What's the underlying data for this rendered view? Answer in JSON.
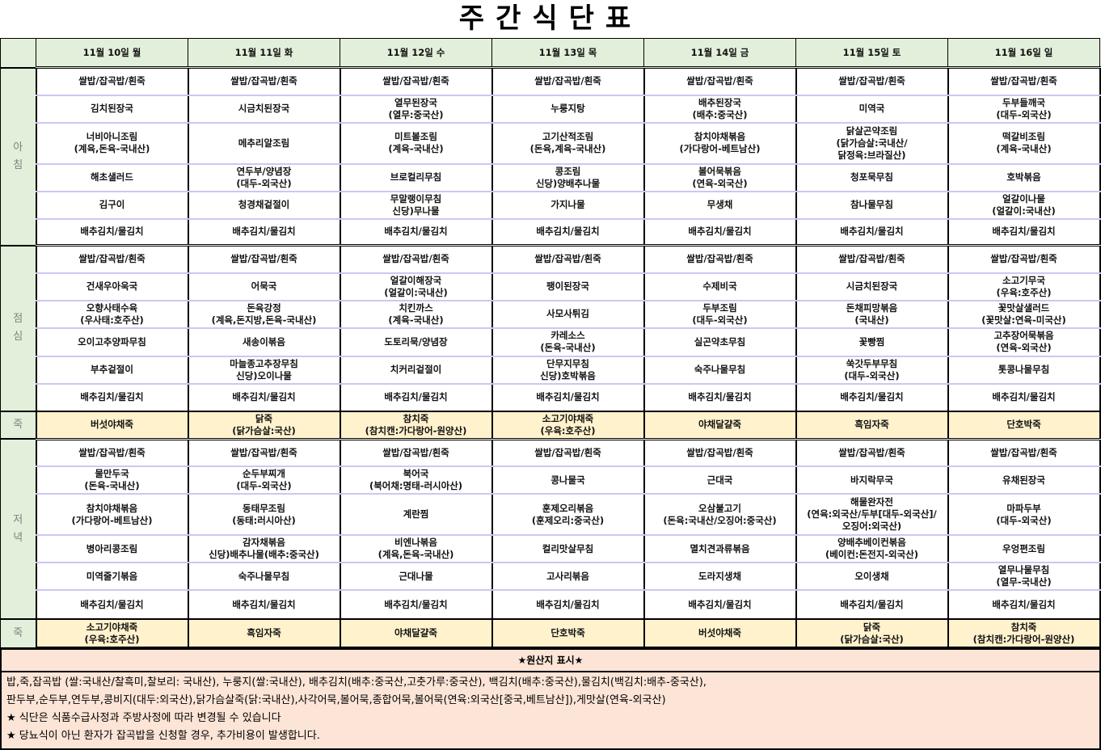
{
  "title": "주간식단표",
  "days": [
    "11월 10일 월",
    "11월 11일 화",
    "11월 12일 수",
    "11월 13일 목",
    "11월 14일 금",
    "11월 15일 토",
    "11월 16일 일"
  ],
  "meals": [
    {
      "label": "아\n침",
      "type": "meal",
      "rows": [
        [
          "쌀밥/잡곡밥/흰죽",
          "쌀밥/잡곡밥/흰죽",
          "쌀밥/잡곡밥/흰죽",
          "쌀밥/잡곡밥/흰죽",
          "쌀밥/잡곡밥/흰죽",
          "쌀밥/잡곡밥/흰죽",
          "쌀밥/잡곡밥/흰죽"
        ],
        [
          "김치된장국",
          "시금치된장국",
          "열무된장국\n(열무:중국산)",
          "누룽지탕",
          "배추된장국\n(배추:중국산)",
          "미역국",
          "두부들깨국\n(대두-외국산)"
        ],
        [
          "너비아니조림\n(계육,돈육-국내산)",
          "메추리알조림",
          "미트볼조림\n(계육-국내산)",
          "고기산적조림\n(돈육,계육-국내산)",
          "참치야채볶음\n(가다랑어-베트남산)",
          "닭살곤약조림\n(닭가슴살:국내산/\n닭정육:브라질산)",
          "떡갈비조림\n(계육-국내산)"
        ],
        [
          "해초샐러드",
          "연두부/양념장\n(대두-외국산)",
          "브로컬리무침",
          "콩조림\n신당)양배추나물",
          "볼어묵볶음\n(연육-외국산)",
          "청포묵무침",
          "호박볶음"
        ],
        [
          "김구이",
          "청경채겉절이",
          "무말랭이무침\n신당)무나물",
          "가지나물",
          "무생채",
          "참나물무침",
          "얼갈이나물\n(얼갈이:국내산)"
        ],
        [
          "배추김치/물김치",
          "배추김치/물김치",
          "배추김치/물김치",
          "배추김치/물김치",
          "배추김치/물김치",
          "배추김치/물김치",
          "배추김치/물김치"
        ]
      ]
    },
    {
      "label": "점\n심",
      "type": "meal",
      "rows": [
        [
          "쌀밥/잡곡밥/흰죽",
          "쌀밥/잡곡밥/흰죽",
          "쌀밥/잡곡밥/흰죽",
          "쌀밥/잡곡밥/흰죽",
          "쌀밥/잡곡밥/흰죽",
          "쌀밥/잡곡밥/흰죽",
          "쌀밥/잡곡밥/흰죽"
        ],
        [
          "건새우아욱국",
          "어묵국",
          "얼갈이해장국\n(얼갈이:국내산)",
          "팽이된장국",
          "수제비국",
          "시금치된장국",
          "소고기무국\n(우육:호주산)"
        ],
        [
          "오향사태수육\n(우사태:호주산)",
          "돈육강정\n(계육,돈지방,돈육-국내산)",
          "치킨까스\n(계육-국내산)",
          "사모사튀김",
          "두부조림\n(대두-외국산)",
          "돈채피망볶음\n(국내산)",
          "꽃맛살샐러드\n(꽃맛살:연육-미국산)"
        ],
        [
          "오이고추양파무침",
          "새송이볶음",
          "도토리묵/양념장",
          "카레소스\n(돈육-국내산)",
          "실곤약초무침",
          "꽃빵찜",
          "고추장어묵볶음\n(연육-외국산)"
        ],
        [
          "부추겉절이",
          "마늘종고추장무침\n신당)오이나물",
          "치커리겉절이",
          "단무지무침\n신당)호박볶음",
          "숙주나물무침",
          "쑥갓두부무침\n(대두-외국산)",
          "톳콩나물무침"
        ],
        [
          "배추김치/물김치",
          "배추김치/물김치",
          "배추김치/물김치",
          "배추김치/물김치",
          "배추김치/물김치",
          "배추김치/물김치",
          "배추김치/물김치"
        ]
      ]
    },
    {
      "label": "죽",
      "type": "juk",
      "rows": [
        [
          "버섯야채죽",
          "닭죽\n(닭가슴살:국산)",
          "참치죽\n(참치캔:가다랑어-원양산)",
          "소고기야채죽\n(우육:호주산)",
          "야채달걀죽",
          "흑임자죽",
          "단호박죽"
        ]
      ]
    },
    {
      "label": "저\n녁",
      "type": "meal",
      "rows": [
        [
          "쌀밥/잡곡밥/흰죽",
          "쌀밥/잡곡밥/흰죽",
          "쌀밥/잡곡밥/흰죽",
          "쌀밥/잡곡밥/흰죽",
          "쌀밥/잡곡밥/흰죽",
          "쌀밥/잡곡밥/흰죽",
          "쌀밥/잡곡밥/흰죽"
        ],
        [
          "물만두국\n(돈육-국내산)",
          "순두부찌개\n(대두-외국산)",
          "북어국\n(북어채:명태-러시아산)",
          "콩나물국",
          "근대국",
          "바지락무국",
          "유채된장국"
        ],
        [
          "참치야채볶음\n(가다랑어-베트남산)",
          "동태무조림\n(동태:러시아산)",
          "계란찜",
          "훈제오리볶음\n(훈제오리:중국산)",
          "오삼불고기\n(돈육:국내산/오징어:중국산)",
          "해물완자전\n(연육:외국산/두부[대두-외국산]/\n오징어:외국산)",
          "마파두부\n(대두-외국산)"
        ],
        [
          "병아리콩조림",
          "감자채볶음\n신당)배추나물(배추:중국산)",
          "비엔나볶음\n(계육,돈육-국내산)",
          "컬리맛살무침",
          "멸치견과류볶음",
          "양배추베이컨볶음\n(베이컨:돈전지-외국산)",
          "우엉편조림"
        ],
        [
          "미역줄기볶음",
          "숙주나물무침",
          "근대나물",
          "고사리볶음",
          "도라지생채",
          "오이생채",
          "열무나물무침\n(열무-국내산)"
        ],
        [
          "배추김치/물김치",
          "배추김치/물김치",
          "배추김치/물김치",
          "배추김치/물김치",
          "배추김치/물김치",
          "배추김치/물김치",
          "배추김치/물김치"
        ]
      ]
    },
    {
      "label": "죽",
      "type": "juk",
      "rows": [
        [
          "소고기야채죽\n(우육:호주산)",
          "흑임자죽",
          "야채달걀죽",
          "단호박죽",
          "버섯야채죽",
          "닭죽\n(닭가슴살:국산)",
          "참치죽\n(참치캔:가다랑어-원양산)"
        ]
      ]
    }
  ],
  "origin": {
    "heading": "★원산지 표시★",
    "lines": [
      "밥,죽,잡곡밥 (쌀:국내산/찰흑미,찰보리: 국내산), 누룽지(쌀:국내산), 배추김치(배추:중국산,고춧가루:중국산), 백김치(배추:중국산),물김치(백김치:배추-중국산),",
      "판두부,순두부,연두부,콩비지(대두:외국산),닭가슴살죽(닭:국내산),사각어묵,볼어묵,종합어묵,볼어묵(연육:외국산[중국,베트남산]),게맛살(연육-외국산)",
      " ★ 식단은 식품수급사정과 주방사정에 따라 변경될 수 있습니다",
      "★ 당뇨식이 아닌 환자가 잡곡밥을 신청할 경우, 추가비용이 발생합니다."
    ]
  },
  "colors": {
    "label_bg": "#e2efda",
    "juk_bg": "#fff2cc",
    "footer_bg": "#fce4d6",
    "row_divider": "#c9c9f3"
  }
}
